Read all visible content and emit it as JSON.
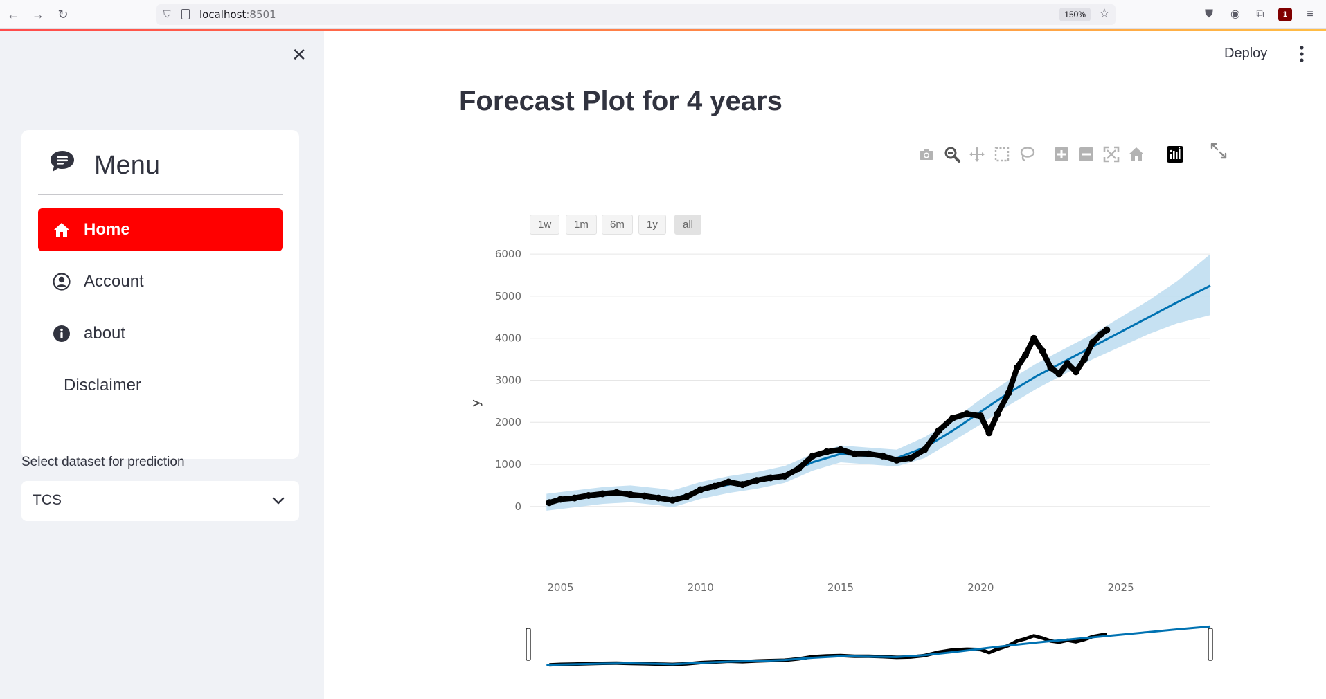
{
  "browser": {
    "url_host": "localhost",
    "url_port": ":8501",
    "zoom": "150%",
    "ublock_badge": "1"
  },
  "sidebar": {
    "menu_title": "Menu",
    "items": [
      {
        "label": "Home",
        "icon": "house-icon",
        "active": true
      },
      {
        "label": "Account",
        "icon": "person-circle-icon",
        "active": false
      },
      {
        "label": "about",
        "icon": "info-circle-icon",
        "active": false
      },
      {
        "label": "Disclaimer",
        "icon": "",
        "active": false
      }
    ],
    "select_label": "Select dataset for prediction",
    "select_value": "TCS"
  },
  "header": {
    "deploy_label": "Deploy"
  },
  "main": {
    "title": "Forecast Plot for 4 years"
  },
  "colors": {
    "accent": "#ff0000",
    "forecast_line": "#0072b2",
    "interval_band": "#bcdcf0",
    "actual_points": "#000000"
  },
  "chart_data": {
    "type": "line",
    "title": "",
    "xlabel": "",
    "ylabel": "y",
    "ylim": [
      -300,
      6200
    ],
    "xlim": [
      2003.9,
      2028.2
    ],
    "x_ticks": [
      2005,
      2010,
      2015,
      2020,
      2025
    ],
    "y_ticks": [
      0,
      1000,
      2000,
      3000,
      4000,
      5000,
      6000
    ],
    "range_selector": [
      "1w",
      "1m",
      "6m",
      "1y",
      "all"
    ],
    "range_selector_active": "all",
    "grid": true,
    "series": [
      {
        "kind": "forecast",
        "x": [
          2004.5,
          2005.5,
          2006.5,
          2007.5,
          2008.5,
          2009.0,
          2010.0,
          2011.0,
          2012.0,
          2013.0,
          2014.0,
          2015.0,
          2016.0,
          2017.0,
          2018.0,
          2019.0,
          2020.0,
          2021.0,
          2022.0,
          2023.0,
          2024.0,
          2025.0,
          2026.0,
          2027.0,
          2028.2
        ],
        "y": [
          100,
          180,
          260,
          300,
          230,
          180,
          380,
          520,
          620,
          760,
          1050,
          1250,
          1200,
          1150,
          1400,
          1800,
          2250,
          2700,
          3100,
          3450,
          3800,
          4150,
          4500,
          4850,
          5250
        ],
        "lower": [
          -100,
          -20,
          60,
          100,
          30,
          -20,
          180,
          320,
          420,
          560,
          850,
          1050,
          1000,
          950,
          1150,
          1550,
          1950,
          2400,
          2800,
          3150,
          3500,
          3800,
          4100,
          4350,
          4550
        ],
        "upper": [
          300,
          380,
          460,
          500,
          430,
          380,
          580,
          720,
          820,
          960,
          1250,
          1450,
          1400,
          1350,
          1650,
          2050,
          2550,
          3000,
          3400,
          3750,
          4100,
          4500,
          4900,
          5350,
          6000
        ]
      },
      {
        "kind": "actual",
        "x": [
          2004.6,
          2005.0,
          2005.5,
          2006.0,
          2006.5,
          2007.0,
          2007.5,
          2008.0,
          2008.5,
          2009.0,
          2009.5,
          2010.0,
          2010.5,
          2011.0,
          2011.5,
          2012.0,
          2012.5,
          2013.0,
          2013.5,
          2014.0,
          2014.5,
          2015.0,
          2015.5,
          2016.0,
          2016.5,
          2017.0,
          2017.5,
          2018.0,
          2018.5,
          2019.0,
          2019.5,
          2020.0,
          2020.3,
          2020.6,
          2021.0,
          2021.3,
          2021.6,
          2021.9,
          2022.2,
          2022.5,
          2022.8,
          2023.1,
          2023.4,
          2023.7,
          2024.0,
          2024.3,
          2024.5
        ],
        "y": [
          90,
          170,
          200,
          260,
          300,
          330,
          280,
          250,
          200,
          150,
          230,
          400,
          480,
          580,
          520,
          620,
          680,
          720,
          900,
          1200,
          1300,
          1350,
          1250,
          1250,
          1200,
          1100,
          1150,
          1350,
          1800,
          2100,
          2200,
          2150,
          1750,
          2200,
          2700,
          3300,
          3600,
          4000,
          3700,
          3300,
          3150,
          3400,
          3200,
          3500,
          3900,
          4100,
          4200
        ]
      }
    ]
  }
}
